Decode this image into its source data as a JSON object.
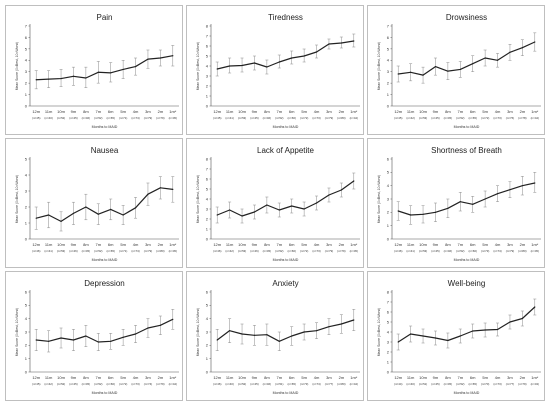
{
  "chart_data": [
    {
      "type": "line",
      "title": "Pain",
      "xlabel": "Months to MAID",
      "ylabel": "Mean Score (0=Best, 10=Worst)",
      "ylim": [
        0,
        7
      ],
      "yticks": [
        0,
        1,
        2,
        3,
        4,
        5,
        6,
        7
      ],
      "categories": [
        "12m",
        "11m",
        "10m",
        "9m",
        "8m",
        "7m",
        "6m",
        "5m",
        "4m",
        "3m",
        "2m",
        "1m*"
      ],
      "n_labels": [
        "(n=45)",
        "(n=40)",
        "(n=52)",
        "(n=45)",
        "(n=46)",
        "(n=52)",
        "(n=65)",
        "(n=71)",
        "(n=74)",
        "(n=79)",
        "(n=79)",
        "(n=45)"
      ],
      "values": [
        2.3,
        2.35,
        2.4,
        2.6,
        2.45,
        2.95,
        2.9,
        3.2,
        3.45,
        4.1,
        4.2,
        4.4
      ],
      "error_low": [
        1.5,
        1.6,
        1.7,
        1.8,
        1.6,
        2.0,
        2.1,
        2.4,
        2.7,
        3.3,
        3.5,
        3.5
      ],
      "error_high": [
        3.1,
        3.1,
        3.2,
        3.4,
        3.4,
        3.9,
        3.8,
        4.0,
        4.2,
        4.9,
        4.9,
        5.3
      ]
    },
    {
      "type": "line",
      "title": "Tiredness",
      "xlabel": "Months to MAID",
      "ylabel": "Mean Score (0=Best, 10=Worst)",
      "ylim": [
        0,
        8
      ],
      "yticks": [
        0,
        1,
        2,
        3,
        4,
        5,
        6,
        7,
        8
      ],
      "categories": [
        "12m",
        "11m",
        "10m",
        "9m",
        "8m",
        "7m",
        "6m",
        "5m",
        "4m",
        "3m",
        "2m",
        "1m*"
      ],
      "n_labels": [
        "(n=45)",
        "(n=41)",
        "(n=53)",
        "(n=45)",
        "(n=46)",
        "(n=52)",
        "(n=66)",
        "(n=72)",
        "(n=73)",
        "(n=79)",
        "(n=80)",
        "(n=44)"
      ],
      "values": [
        3.7,
        4.0,
        4.05,
        4.3,
        3.9,
        4.4,
        4.8,
        5.0,
        5.4,
        6.2,
        6.3,
        6.5
      ],
      "error_low": [
        3.0,
        3.3,
        3.4,
        3.6,
        3.2,
        3.8,
        4.2,
        4.4,
        4.8,
        5.7,
        5.8,
        5.9
      ],
      "error_high": [
        4.4,
        4.8,
        4.8,
        5.0,
        4.6,
        5.1,
        5.5,
        5.7,
        6.1,
        6.7,
        6.9,
        7.2
      ]
    },
    {
      "type": "line",
      "title": "Drowsiness",
      "xlabel": "Months to MAID",
      "ylabel": "Mean Score (0=Best, 10=Worst)",
      "ylim": [
        0,
        7
      ],
      "yticks": [
        0,
        1,
        2,
        3,
        4,
        5,
        6,
        7
      ],
      "categories": [
        "12m",
        "11m",
        "10m",
        "9m",
        "8m",
        "7m",
        "6m",
        "5m",
        "4m",
        "3m",
        "2m",
        "1m*"
      ],
      "n_labels": [
        "(n=45)",
        "(n=42)",
        "(n=53)",
        "(n=45)",
        "(n=45)",
        "(n=52)",
        "(n=65)",
        "(n=72)",
        "(n=73)",
        "(n=76)",
        "(n=78)",
        "(n=44)"
      ],
      "values": [
        2.8,
        2.95,
        2.7,
        3.45,
        3.05,
        3.2,
        3.7,
        4.2,
        4.0,
        4.7,
        5.1,
        5.6
      ],
      "error_low": [
        2.1,
        2.2,
        2.0,
        2.7,
        2.3,
        2.5,
        3.0,
        3.5,
        3.4,
        4.0,
        4.4,
        4.8
      ],
      "error_high": [
        3.5,
        3.7,
        3.4,
        4.2,
        3.8,
        3.9,
        4.4,
        4.9,
        4.6,
        5.4,
        5.8,
        6.4
      ]
    },
    {
      "type": "line",
      "title": "Nausea",
      "xlabel": "Months to MAID",
      "ylabel": "Mean Score (0=Best, 10=Worst)",
      "ylim": [
        0,
        5
      ],
      "yticks": [
        0,
        1,
        2,
        3,
        4,
        5
      ],
      "categories": [
        "12m",
        "11m",
        "10m",
        "9m",
        "8m",
        "7m",
        "6m",
        "5m",
        "4m",
        "3m",
        "2m",
        "1m*"
      ],
      "n_labels": [
        "(n=46)",
        "(n=41)",
        "(n=53)",
        "(n=46)",
        "(n=45)",
        "(n=52)",
        "(n=65)",
        "(n=71)",
        "(n=74)",
        "(n=79)",
        "(n=80)",
        "(n=45)"
      ],
      "values": [
        1.3,
        1.5,
        1.1,
        1.6,
        2.0,
        1.55,
        1.85,
        1.5,
        1.95,
        2.8,
        3.2,
        3.1
      ],
      "error_low": [
        0.6,
        0.7,
        0.5,
        0.9,
        1.2,
        0.9,
        1.2,
        0.9,
        1.3,
        2.1,
        2.5,
        2.3
      ],
      "error_high": [
        2.0,
        2.3,
        1.7,
        2.3,
        2.8,
        2.2,
        2.5,
        2.1,
        2.6,
        3.5,
        3.9,
        3.9
      ]
    },
    {
      "type": "line",
      "title": "Lack of Appetite",
      "xlabel": "Months to MAID",
      "ylabel": "Mean Score (0=Best, 10=Worst)",
      "ylim": [
        0,
        8
      ],
      "yticks": [
        0,
        1,
        2,
        3,
        4,
        5,
        6,
        7,
        8
      ],
      "categories": [
        "12m",
        "11m",
        "10m",
        "9m",
        "8m",
        "7m",
        "6m",
        "5m",
        "4m",
        "3m",
        "2m",
        "1m*"
      ],
      "n_labels": [
        "(n=46)",
        "(n=42)",
        "(n=53)",
        "(n=46)",
        "(n=45)",
        "(n=52)",
        "(n=66)",
        "(n=72)",
        "(n=73)",
        "(n=79)",
        "(n=79)",
        "(n=45)"
      ],
      "values": [
        2.4,
        2.9,
        2.3,
        2.7,
        3.4,
        2.9,
        3.3,
        3.0,
        3.6,
        4.4,
        4.9,
        5.8
      ],
      "error_low": [
        1.6,
        2.1,
        1.6,
        2.0,
        2.6,
        2.2,
        2.6,
        2.3,
        2.9,
        3.7,
        4.2,
        5.0
      ],
      "error_high": [
        3.2,
        3.7,
        3.0,
        3.4,
        4.2,
        3.6,
        4.0,
        3.7,
        4.3,
        5.1,
        5.6,
        6.6
      ]
    },
    {
      "type": "line",
      "title": "Shortness of Breath",
      "xlabel": "Months to MAID",
      "ylabel": "Mean Score (0=Best, 10=Worst)",
      "ylim": [
        0,
        6
      ],
      "yticks": [
        0,
        1,
        2,
        3,
        4,
        5,
        6
      ],
      "categories": [
        "12m",
        "11m",
        "10m",
        "9m",
        "8m",
        "7m",
        "6m",
        "5m",
        "4m",
        "3m",
        "2m",
        "1m*"
      ],
      "n_labels": [
        "(n=46)",
        "(n=41)",
        "(n=53)",
        "(n=45)",
        "(n=46)",
        "(n=52)",
        "(n=66)",
        "(n=73)",
        "(n=74)",
        "(n=79)",
        "(n=80)",
        "(n=45)"
      ],
      "values": [
        2.1,
        1.8,
        1.85,
        2.0,
        2.3,
        2.8,
        2.6,
        3.0,
        3.4,
        3.7,
        4.0,
        4.2
      ],
      "error_low": [
        1.4,
        1.1,
        1.2,
        1.3,
        1.6,
        2.1,
        2.0,
        2.4,
        2.8,
        3.1,
        3.3,
        3.5
      ],
      "error_high": [
        2.8,
        2.5,
        2.5,
        2.7,
        3.0,
        3.5,
        3.2,
        3.6,
        4.0,
        4.3,
        4.7,
        5.0
      ]
    },
    {
      "type": "line",
      "title": "Depression",
      "xlabel": "Months to MAID",
      "ylabel": "Mean Score (0=Best, 10=Worst)",
      "ylim": [
        0,
        6
      ],
      "yticks": [
        0,
        1,
        2,
        3,
        4,
        5,
        6
      ],
      "categories": [
        "12m",
        "11m",
        "10m",
        "9m",
        "8m",
        "7m",
        "6m",
        "5m",
        "4m",
        "3m",
        "2m",
        "1m*"
      ],
      "n_labels": [
        "(n=45)",
        "(n=42)",
        "(n=52)",
        "(n=45)",
        "(n=45)",
        "(n=52)",
        "(n=66)",
        "(n=72)",
        "(n=73)",
        "(n=74)",
        "(n=79)",
        "(n=44)"
      ],
      "values": [
        2.4,
        2.3,
        2.55,
        2.4,
        2.7,
        2.25,
        2.3,
        2.6,
        2.85,
        3.3,
        3.5,
        3.95
      ],
      "error_low": [
        1.6,
        1.5,
        1.8,
        1.6,
        1.9,
        1.6,
        1.7,
        2.0,
        2.2,
        2.6,
        2.8,
        3.2
      ],
      "error_high": [
        3.2,
        3.1,
        3.3,
        3.2,
        3.5,
        2.9,
        2.9,
        3.2,
        3.5,
        4.0,
        4.2,
        4.7
      ]
    },
    {
      "type": "line",
      "title": "Anxiety",
      "xlabel": "Months to MAID",
      "ylabel": "Mean Score (0=Best, 10=Worst)",
      "ylim": [
        0,
        6
      ],
      "yticks": [
        0,
        1,
        2,
        3,
        4,
        5,
        6
      ],
      "categories": [
        "12m",
        "11m",
        "10m",
        "9m",
        "8m",
        "7m",
        "6m",
        "5m",
        "4m",
        "3m",
        "2m",
        "1m*"
      ],
      "n_labels": [
        "(n=46)",
        "(n=40)",
        "(n=52)",
        "(n=45)",
        "(n=46)",
        "(n=51)",
        "(n=65)",
        "(n=73)",
        "(n=74)",
        "(n=77)",
        "(n=80)",
        "(n=44)"
      ],
      "values": [
        2.4,
        3.1,
        2.85,
        2.75,
        2.8,
        2.3,
        2.7,
        3.0,
        3.1,
        3.4,
        3.6,
        3.9
      ],
      "error_low": [
        1.6,
        2.2,
        2.1,
        2.0,
        2.0,
        1.6,
        2.0,
        2.4,
        2.5,
        2.8,
        2.9,
        3.1
      ],
      "error_high": [
        3.2,
        4.0,
        3.6,
        3.5,
        3.6,
        3.0,
        3.4,
        3.6,
        3.7,
        4.0,
        4.3,
        4.7
      ]
    },
    {
      "type": "line",
      "title": "Well-being",
      "xlabel": "Months to MAID",
      "ylabel": "Mean Score (0=Best, 10=Worst)",
      "ylim": [
        0,
        8
      ],
      "yticks": [
        0,
        1,
        2,
        3,
        4,
        5,
        6,
        7,
        8
      ],
      "categories": [
        "12m",
        "11m",
        "10m",
        "9m",
        "8m",
        "7m",
        "6m",
        "5m",
        "4m",
        "3m",
        "2m",
        "1m*"
      ],
      "n_labels": [
        "(n=44)",
        "(n=40)",
        "(n=51)",
        "(n=45)",
        "(n=45)",
        "(n=52)",
        "(n=65)",
        "(n=70)",
        "(n=73)",
        "(n=77)",
        "(n=79)",
        "(n=43)"
      ],
      "values": [
        3.0,
        3.8,
        3.6,
        3.4,
        3.15,
        3.6,
        4.1,
        4.2,
        4.25,
        5.0,
        5.35,
        6.5
      ],
      "error_low": [
        2.2,
        3.0,
        2.9,
        2.7,
        2.4,
        2.9,
        3.4,
        3.5,
        3.6,
        4.3,
        4.6,
        5.7
      ],
      "error_high": [
        3.8,
        4.6,
        4.3,
        4.1,
        3.9,
        4.3,
        4.8,
        4.9,
        4.9,
        5.7,
        6.1,
        7.3
      ]
    }
  ]
}
